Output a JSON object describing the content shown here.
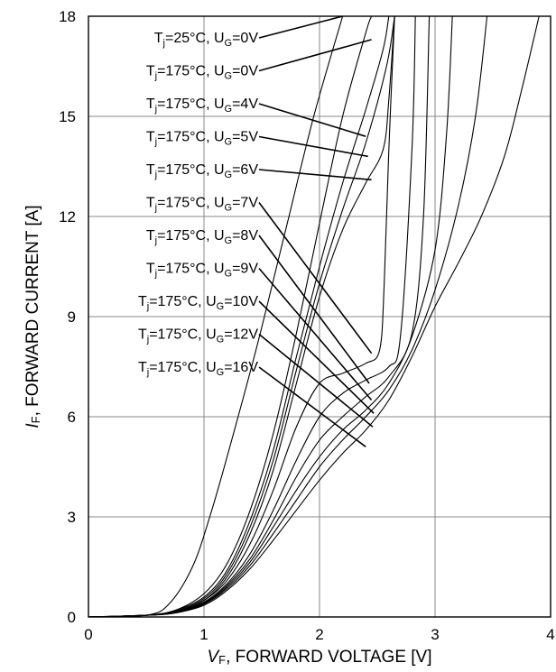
{
  "chart_data": {
    "type": "line",
    "xlabel": {
      "italic": "V",
      "sub": "F",
      "rest": ", FORWARD VOLTAGE [V]"
    },
    "ylabel": {
      "italic": "I",
      "sub": "F",
      "rest": ", FORWARD CURRENT [A]"
    },
    "xlim": [
      0,
      4
    ],
    "ylim": [
      0,
      18
    ],
    "xticks": [
      "0",
      "1",
      "2",
      "3",
      "4"
    ],
    "yticks": [
      "0",
      "3",
      "6",
      "9",
      "12",
      "15",
      "18"
    ],
    "grid": true,
    "series": [
      {
        "name": "Tj=25°C, UG=0V",
        "label": {
          "tj": "25°C",
          "ug": "0V"
        },
        "pointer": [
          2.2,
          18.0
        ],
        "points": [
          [
            0,
            0
          ],
          [
            0.5,
            0.05
          ],
          [
            0.7,
            0.4
          ],
          [
            0.9,
            1.5
          ],
          [
            1.05,
            3
          ],
          [
            1.2,
            4.8
          ],
          [
            1.45,
            8
          ],
          [
            1.7,
            11.5
          ],
          [
            1.95,
            15
          ],
          [
            2.2,
            18
          ]
        ]
      },
      {
        "name": "Tj=175°C, UG=0V",
        "label": {
          "tj": "175°C",
          "ug": "0V"
        },
        "pointer": [
          2.45,
          17.3
        ],
        "points": [
          [
            0,
            0
          ],
          [
            0.5,
            0.05
          ],
          [
            0.75,
            0.2
          ],
          [
            1.0,
            0.7
          ],
          [
            1.2,
            1.6
          ],
          [
            1.4,
            3.2
          ],
          [
            1.6,
            5.5
          ],
          [
            1.8,
            8.5
          ],
          [
            2.0,
            11.8
          ],
          [
            2.2,
            15
          ],
          [
            2.4,
            17.5
          ],
          [
            2.45,
            18
          ]
        ]
      },
      {
        "name": "Tj=175°C, UG=4V",
        "label": {
          "tj": "175°C",
          "ug": "4V"
        },
        "pointer": [
          2.4,
          14.4
        ],
        "points": [
          [
            0,
            0
          ],
          [
            0.5,
            0.05
          ],
          [
            0.75,
            0.2
          ],
          [
            1.0,
            0.6
          ],
          [
            1.2,
            1.4
          ],
          [
            1.4,
            2.9
          ],
          [
            1.6,
            5
          ],
          [
            1.8,
            7.8
          ],
          [
            2.0,
            10.5
          ],
          [
            2.2,
            13
          ],
          [
            2.4,
            15.2
          ],
          [
            2.55,
            17
          ],
          [
            2.6,
            18
          ]
        ]
      },
      {
        "name": "Tj=175°C, UG=5V",
        "label": {
          "tj": "175°C",
          "ug": "5V"
        },
        "pointer": [
          2.42,
          13.8
        ],
        "points": [
          [
            0,
            0
          ],
          [
            0.5,
            0.05
          ],
          [
            0.75,
            0.18
          ],
          [
            1.0,
            0.55
          ],
          [
            1.2,
            1.3
          ],
          [
            1.4,
            2.7
          ],
          [
            1.6,
            4.7
          ],
          [
            1.8,
            7.4
          ],
          [
            2.0,
            10
          ],
          [
            2.2,
            12.2
          ],
          [
            2.4,
            14.2
          ],
          [
            2.58,
            16.5
          ],
          [
            2.65,
            18
          ]
        ]
      },
      {
        "name": "Tj=175°C, UG=6V",
        "label": {
          "tj": "175°C",
          "ug": "6V"
        },
        "pointer": [
          2.45,
          13.1
        ],
        "points": [
          [
            0,
            0
          ],
          [
            0.5,
            0.05
          ],
          [
            0.75,
            0.16
          ],
          [
            1.0,
            0.5
          ],
          [
            1.2,
            1.2
          ],
          [
            1.4,
            2.5
          ],
          [
            1.6,
            4.4
          ],
          [
            1.8,
            7
          ],
          [
            2.0,
            9.6
          ],
          [
            2.2,
            11.6
          ],
          [
            2.4,
            13
          ],
          [
            2.55,
            14
          ],
          [
            2.6,
            15.5
          ],
          [
            2.65,
            18
          ]
        ]
      },
      {
        "name": "Tj=175°C, UG=7V",
        "label": {
          "tj": "175°C",
          "ug": "7V"
        },
        "pointer": [
          2.45,
          7.9
        ],
        "points": [
          [
            0,
            0
          ],
          [
            0.5,
            0.05
          ],
          [
            0.75,
            0.15
          ],
          [
            1.0,
            0.5
          ],
          [
            1.2,
            1.1
          ],
          [
            1.4,
            2.2
          ],
          [
            1.6,
            3.8
          ],
          [
            1.8,
            5.7
          ],
          [
            2.0,
            7
          ],
          [
            2.2,
            7.3
          ],
          [
            2.4,
            7.6
          ],
          [
            2.52,
            8
          ],
          [
            2.56,
            10
          ],
          [
            2.6,
            14
          ],
          [
            2.65,
            18
          ]
        ]
      },
      {
        "name": "Tj=175°C, UG=8V",
        "label": {
          "tj": "175°C",
          "ug": "8V"
        },
        "pointer": [
          2.43,
          7.0
        ],
        "points": [
          [
            0,
            0
          ],
          [
            0.5,
            0.05
          ],
          [
            0.75,
            0.15
          ],
          [
            1.0,
            0.45
          ],
          [
            1.2,
            1.0
          ],
          [
            1.4,
            1.9
          ],
          [
            1.6,
            3.2
          ],
          [
            1.8,
            4.7
          ],
          [
            2.0,
            6
          ],
          [
            2.2,
            6.7
          ],
          [
            2.4,
            7.1
          ],
          [
            2.6,
            7.5
          ],
          [
            2.7,
            8.4
          ],
          [
            2.8,
            14
          ],
          [
            2.83,
            18
          ]
        ]
      },
      {
        "name": "Tj=175°C, UG=9V",
        "label": {
          "tj": "175°C",
          "ug": "9V"
        },
        "pointer": [
          2.45,
          6.5
        ],
        "points": [
          [
            0,
            0
          ],
          [
            0.5,
            0.05
          ],
          [
            0.75,
            0.14
          ],
          [
            1.0,
            0.42
          ],
          [
            1.2,
            0.95
          ],
          [
            1.4,
            1.75
          ],
          [
            1.6,
            2.9
          ],
          [
            1.8,
            4.2
          ],
          [
            2.0,
            5.3
          ],
          [
            2.2,
            6
          ],
          [
            2.4,
            6.6
          ],
          [
            2.6,
            7.2
          ],
          [
            2.8,
            8.5
          ],
          [
            2.9,
            12
          ],
          [
            2.95,
            18
          ]
        ]
      },
      {
        "name": "Tj=175°C, UG=10V",
        "label": {
          "tj": "175°C",
          "ug": "10V"
        },
        "pointer": [
          2.47,
          6.1
        ],
        "points": [
          [
            0,
            0
          ],
          [
            0.5,
            0.05
          ],
          [
            0.75,
            0.13
          ],
          [
            1.0,
            0.4
          ],
          [
            1.2,
            0.9
          ],
          [
            1.4,
            1.65
          ],
          [
            1.6,
            2.7
          ],
          [
            1.8,
            3.8
          ],
          [
            2.0,
            4.8
          ],
          [
            2.2,
            5.6
          ],
          [
            2.4,
            6.2
          ],
          [
            2.6,
            7
          ],
          [
            2.8,
            8.4
          ],
          [
            3.0,
            11
          ],
          [
            3.1,
            14.5
          ],
          [
            3.15,
            18
          ]
        ]
      },
      {
        "name": "Tj=175°C, UG=12V",
        "label": {
          "tj": "175°C",
          "ug": "12V"
        },
        "pointer": [
          2.46,
          5.7
        ],
        "points": [
          [
            0,
            0
          ],
          [
            0.5,
            0.05
          ],
          [
            0.75,
            0.12
          ],
          [
            1.0,
            0.38
          ],
          [
            1.2,
            0.85
          ],
          [
            1.4,
            1.55
          ],
          [
            1.6,
            2.5
          ],
          [
            1.8,
            3.5
          ],
          [
            2.0,
            4.5
          ],
          [
            2.2,
            5.3
          ],
          [
            2.4,
            6
          ],
          [
            2.6,
            6.8
          ],
          [
            2.8,
            8
          ],
          [
            3.0,
            9.8
          ],
          [
            3.2,
            12.3
          ],
          [
            3.35,
            15
          ],
          [
            3.45,
            18
          ]
        ]
      },
      {
        "name": "Tj=175°C, UG=16V",
        "label": {
          "tj": "175°C",
          "ug": "16V"
        },
        "pointer": [
          2.4,
          5.1
        ],
        "points": [
          [
            0,
            0
          ],
          [
            0.5,
            0.05
          ],
          [
            0.75,
            0.12
          ],
          [
            1.0,
            0.35
          ],
          [
            1.2,
            0.8
          ],
          [
            1.4,
            1.45
          ],
          [
            1.6,
            2.3
          ],
          [
            1.8,
            3.2
          ],
          [
            2.0,
            4.1
          ],
          [
            2.2,
            4.9
          ],
          [
            2.4,
            5.6
          ],
          [
            2.6,
            6.5
          ],
          [
            2.8,
            7.8
          ],
          [
            3.0,
            9.3
          ],
          [
            3.2,
            10.6
          ],
          [
            3.4,
            12
          ],
          [
            3.6,
            13.8
          ],
          [
            3.75,
            15.8
          ],
          [
            3.9,
            18
          ]
        ]
      }
    ]
  }
}
